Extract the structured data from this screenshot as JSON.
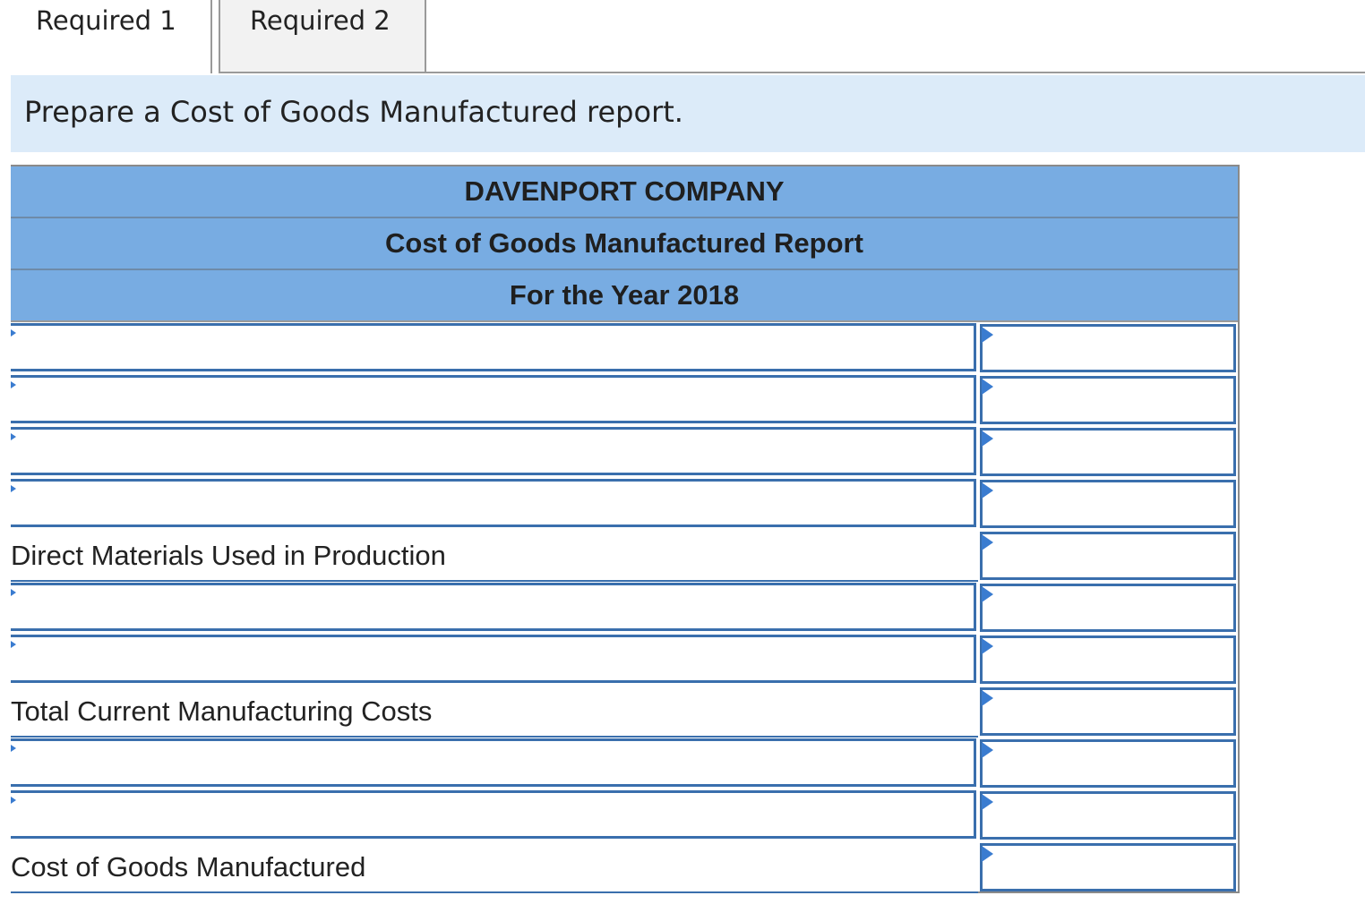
{
  "tabs": [
    {
      "label": "Required 1",
      "active": true
    },
    {
      "label": "Required 2",
      "active": false
    }
  ],
  "instruction": "Prepare a Cost of Goods Manufactured report.",
  "report": {
    "company": "DAVENPORT COMPANY",
    "title": "Cost of Goods Manufactured Report",
    "period": "For the Year 2018",
    "rows": [
      {
        "type": "input",
        "label": "",
        "amount": ""
      },
      {
        "type": "input",
        "label": "",
        "amount": ""
      },
      {
        "type": "input",
        "label": "",
        "amount": ""
      },
      {
        "type": "input",
        "label": "",
        "amount": ""
      },
      {
        "type": "static",
        "label": "Direct Materials Used in Production",
        "amount": ""
      },
      {
        "type": "input",
        "label": "",
        "amount": ""
      },
      {
        "type": "input",
        "label": "",
        "amount": ""
      },
      {
        "type": "static",
        "label": "Total Current Manufacturing Costs",
        "amount": ""
      },
      {
        "type": "input",
        "label": "",
        "amount": ""
      },
      {
        "type": "input",
        "label": "",
        "amount": ""
      },
      {
        "type": "static",
        "label": "Cost of Goods Manufactured",
        "amount": ""
      }
    ]
  },
  "colors": {
    "header_bg": "#78ace2",
    "instruction_bg": "#dcebf9",
    "input_border": "#3a6fad",
    "dropdown_marker": "#3a7cd0"
  }
}
